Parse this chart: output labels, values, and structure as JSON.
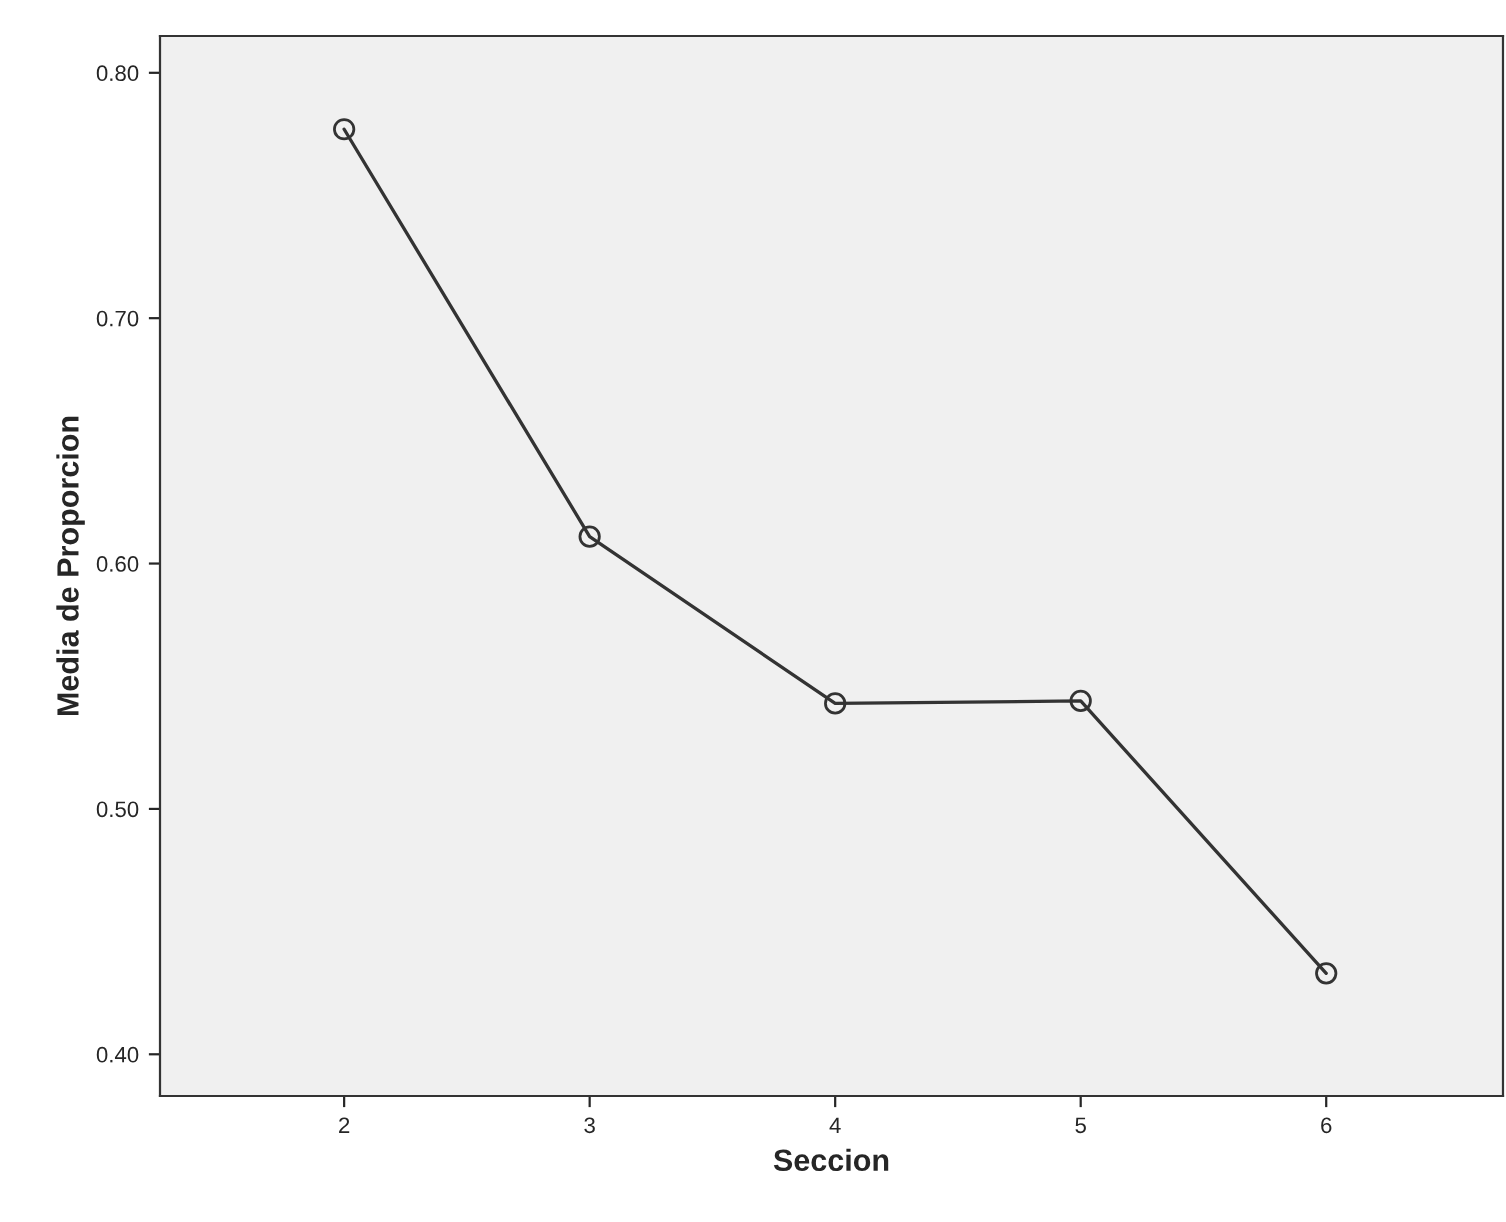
{
  "chart_data": {
    "type": "line",
    "xlabel": "Seccion",
    "ylabel": "Media de Proporcion",
    "x": [
      2,
      3,
      4,
      5,
      6
    ],
    "series": [
      {
        "color": "#333333",
        "values": [
          0.777,
          0.611,
          0.543,
          0.544,
          0.433
        ]
      }
    ],
    "xlim": [
      1.25,
      6.72
    ],
    "xticks": [
      2,
      3,
      4,
      5,
      6
    ],
    "ylim": [
      0.383,
      0.815
    ],
    "yticks": [
      {
        "value": 0.4,
        "label": "0.40"
      },
      {
        "value": 0.5,
        "label": "0.50"
      },
      {
        "value": 0.6,
        "label": "0.60"
      },
      {
        "value": 0.7,
        "label": "0.70"
      },
      {
        "value": 0.8,
        "label": "0.80"
      }
    ],
    "marker": "circle",
    "line_style": "solid",
    "grid": false,
    "legend": false
  }
}
